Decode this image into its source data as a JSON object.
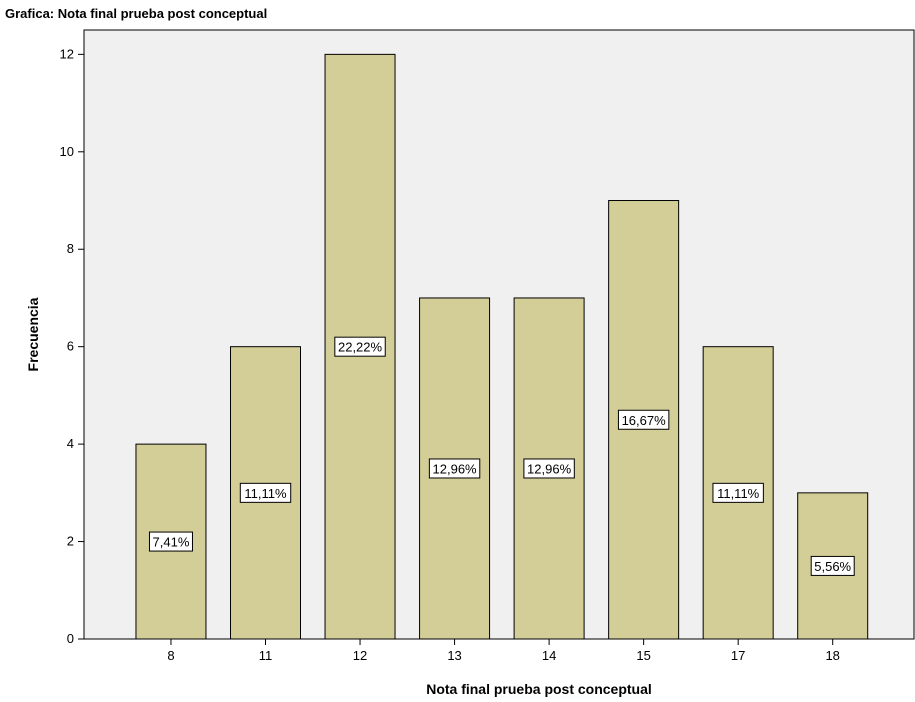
{
  "chart_data": {
    "type": "bar",
    "title": "Grafica: Nota final prueba post conceptual",
    "xlabel": "Nota final prueba post conceptual",
    "ylabel": "Frecuencia",
    "categories": [
      "8",
      "11",
      "12",
      "13",
      "14",
      "15",
      "17",
      "18"
    ],
    "values": [
      4,
      6,
      12,
      7,
      7,
      9,
      6,
      3
    ],
    "data_labels": [
      "7,41%",
      "11,11%",
      "22,22%",
      "12,96%",
      "12,96%",
      "16,67%",
      "11,11%",
      "5,56%"
    ],
    "ylim": [
      0,
      12.5
    ],
    "yticks": [
      "0",
      "2",
      "4",
      "6",
      "8",
      "10",
      "12"
    ],
    "grid": false,
    "colors": {
      "plot_background": "#f0f0f0",
      "bar_fill": "#d3ce97",
      "bar_stroke": "#000000"
    }
  }
}
